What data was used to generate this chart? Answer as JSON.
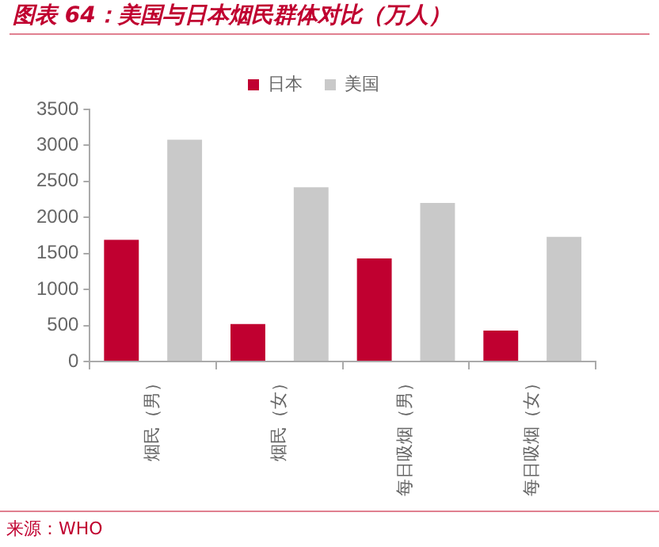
{
  "chart_data": {
    "type": "bar",
    "title": "图表 64：美国与日本烟民群体对比（万人）",
    "categories": [
      "烟民（男）",
      "烟民（女）",
      "每日吸烟（男）",
      "每日吸烟（女）"
    ],
    "series": [
      {
        "name": "日本",
        "color": "#c00030",
        "values": [
          1690,
          520,
          1430,
          430
        ]
      },
      {
        "name": "美国",
        "color": "#c9c9c9",
        "values": [
          3080,
          2420,
          2200,
          1730
        ]
      }
    ],
    "ylim": [
      0,
      3500
    ],
    "yticks": [
      0,
      500,
      1000,
      1500,
      2000,
      2500,
      3000,
      3500
    ],
    "legend": "top",
    "annotations": [
      "来源：WHO"
    ]
  }
}
